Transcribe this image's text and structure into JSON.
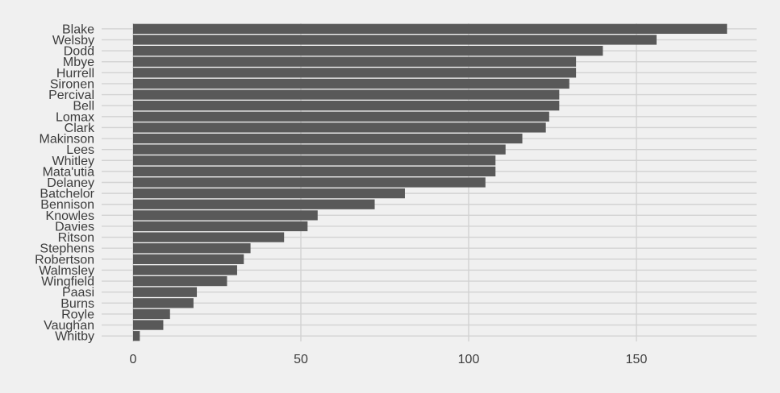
{
  "chart_data": {
    "type": "bar",
    "orientation": "horizontal",
    "title": "",
    "xlabel": "",
    "ylabel": "",
    "xlim": [
      0,
      185
    ],
    "x_ticks": [
      0,
      50,
      100,
      150
    ],
    "grid": true,
    "bar_color": "#595959",
    "background_color": "#f0f0f0",
    "grid_color": "#d2d2d2",
    "categories": [
      "Blake",
      "Welsby",
      "Dodd",
      "Mbye",
      "Hurrell",
      "Sironen",
      "Percival",
      "Bell",
      "Lomax",
      "Clark",
      "Makinson",
      "Lees",
      "Whitley",
      "Mata'utia",
      "Delaney",
      "Batchelor",
      "Bennison",
      "Knowles",
      "Davies",
      "Ritson",
      "Stephens",
      "Robertson",
      "Walmsley",
      "Wingfield",
      "Paasi",
      "Burns",
      "Royle",
      "Vaughan",
      "Whitby"
    ],
    "values": [
      177,
      156,
      140,
      132,
      132,
      130,
      127,
      127,
      124,
      123,
      116,
      111,
      108,
      108,
      105,
      81,
      72,
      55,
      52,
      45,
      35,
      33,
      31,
      28,
      19,
      18,
      11,
      9,
      2
    ]
  }
}
